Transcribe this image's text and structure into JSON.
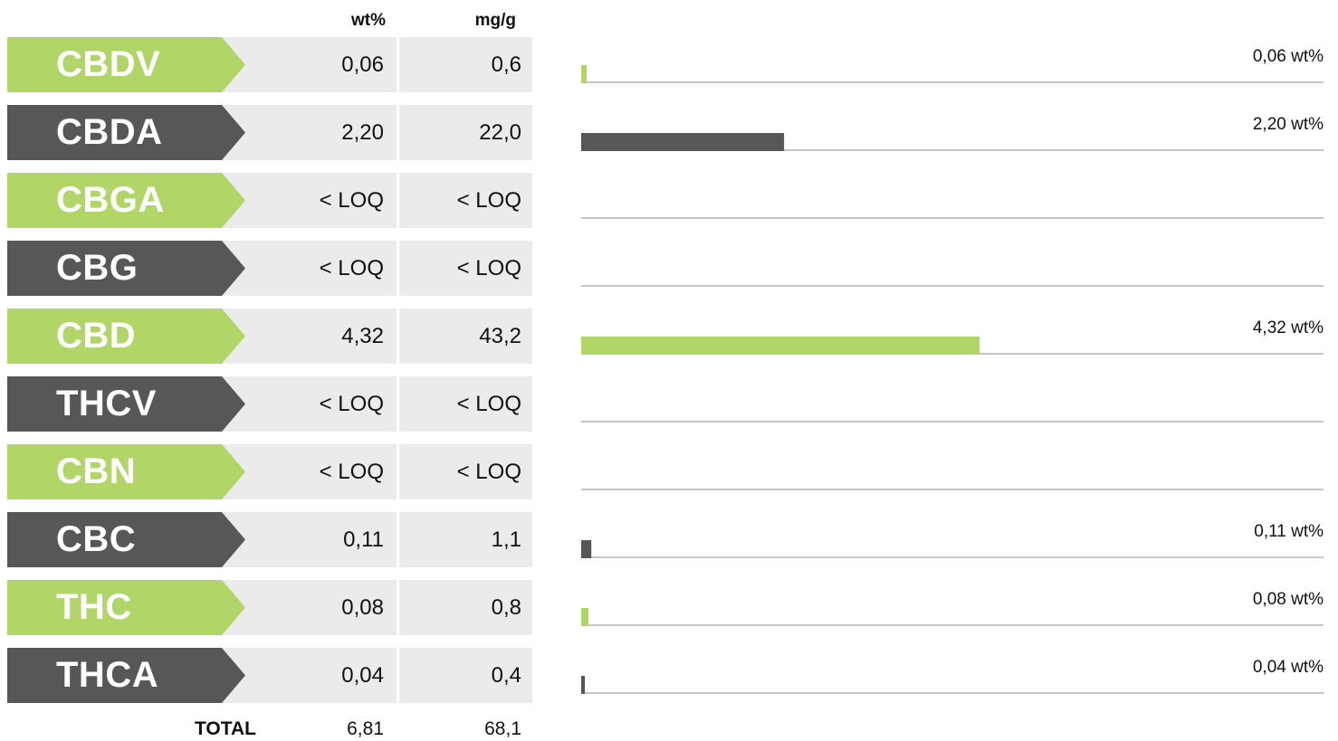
{
  "headers": {
    "wt": "wt%",
    "mg": "mg/g"
  },
  "colors": {
    "green": "#b1d567",
    "dark": "#575757",
    "row_bg": "#ebebeb",
    "axis": "#b4b4b4"
  },
  "rows": [
    {
      "name": "CBDV",
      "wt": "0,06",
      "mg": "0,6",
      "color": "#b1d567"
    },
    {
      "name": "CBDA",
      "wt": "2,20",
      "mg": "22,0",
      "color": "#575757"
    },
    {
      "name": "CBGA",
      "wt": "< LOQ",
      "mg": "< LOQ",
      "color": "#b1d567"
    },
    {
      "name": "CBG",
      "wt": "< LOQ",
      "mg": "< LOQ",
      "color": "#575757"
    },
    {
      "name": "CBD",
      "wt": "4,32",
      "mg": "43,2",
      "color": "#b1d567"
    },
    {
      "name": "THCV",
      "wt": "< LOQ",
      "mg": "< LOQ",
      "color": "#575757"
    },
    {
      "name": "CBN",
      "wt": "< LOQ",
      "mg": "< LOQ",
      "color": "#b1d567"
    },
    {
      "name": "CBC",
      "wt": "0,11",
      "mg": "1,1",
      "color": "#575757"
    },
    {
      "name": "THC",
      "wt": "0,08",
      "mg": "0,8",
      "color": "#b1d567"
    },
    {
      "name": "THCA",
      "wt": "0,04",
      "mg": "0,4",
      "color": "#575757"
    }
  ],
  "total": {
    "label": "TOTAL",
    "wt": "6,81",
    "mg": "68,1"
  },
  "chart_data": {
    "type": "bar",
    "orientation": "horizontal",
    "categories": [
      "CBDV",
      "CBDA",
      "CBGA",
      "CBG",
      "CBD",
      "THCV",
      "CBN",
      "CBC",
      "THC",
      "THCA"
    ],
    "values": [
      0.06,
      2.2,
      null,
      null,
      4.32,
      null,
      null,
      0.11,
      0.08,
      0.04
    ],
    "value_labels": [
      "0,06 wt%",
      "2,20 wt%",
      "",
      "",
      "4,32 wt%",
      "",
      "",
      "0,11 wt%",
      "0,08 wt%",
      "0,04 wt%"
    ],
    "bar_colors": [
      "#b1d567",
      "#575757",
      "#b1d567",
      "#575757",
      "#b1d567",
      "#575757",
      "#b1d567",
      "#575757",
      "#b1d567",
      "#575757"
    ],
    "xlim": [
      0,
      8.05
    ],
    "unit": "wt%"
  }
}
